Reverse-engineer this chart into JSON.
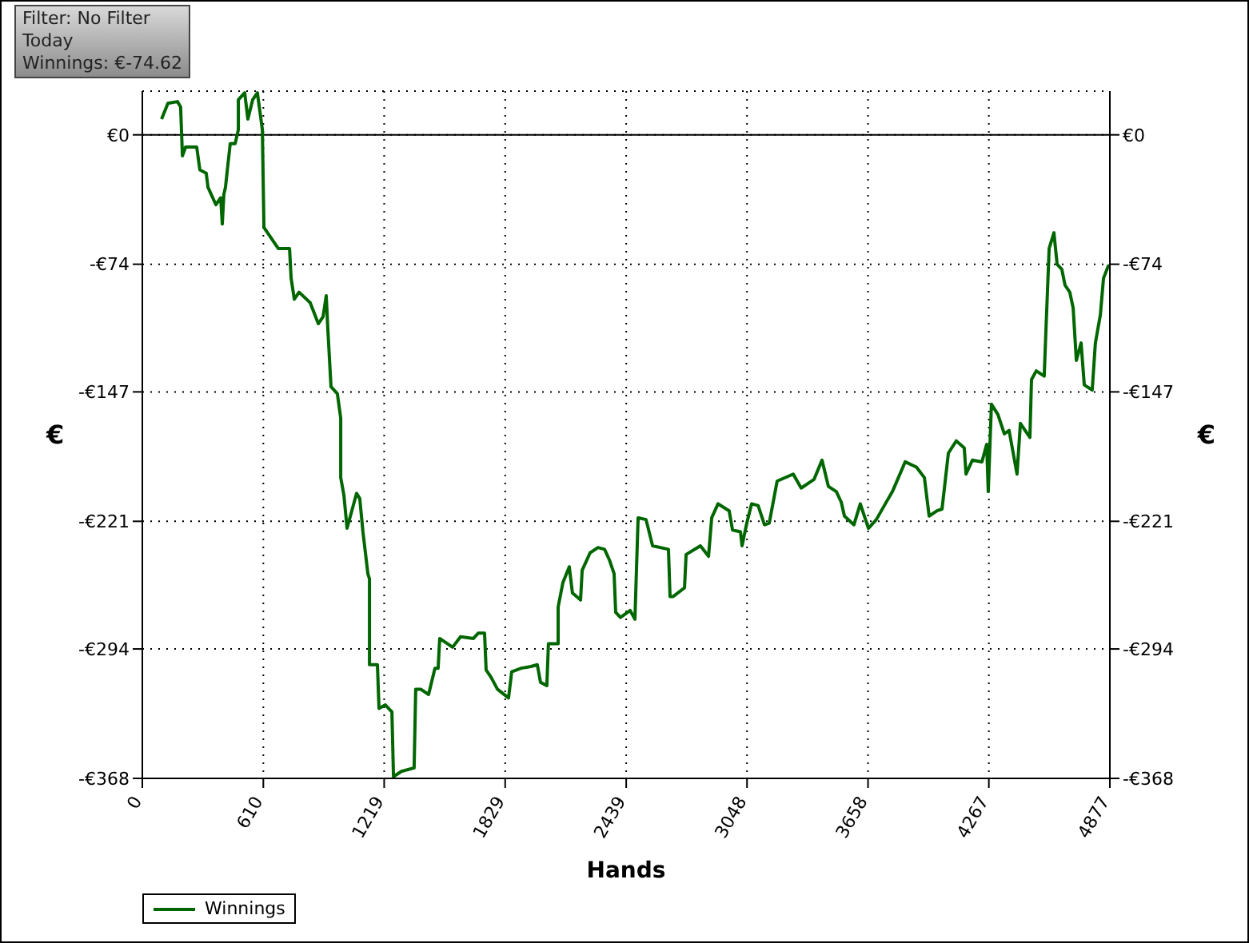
{
  "chart_data": {
    "type": "line",
    "xlabel": "Hands",
    "ylabel": "€",
    "y2label": "€",
    "annotations": [
      "Filter: No Filter",
      "Today",
      "Winnings: €-74.62"
    ],
    "xlim": [
      0,
      4877
    ],
    "xticks": [
      0,
      610,
      1219,
      1829,
      2439,
      3048,
      3658,
      4267,
      4877
    ],
    "ylim": [
      -368,
      25
    ],
    "yticks": [
      {
        "value": 0,
        "label": "€0"
      },
      {
        "value": -74,
        "label": "-€74"
      },
      {
        "value": -147,
        "label": "-€147"
      },
      {
        "value": -221,
        "label": "-€221"
      },
      {
        "value": -294,
        "label": "-€294"
      },
      {
        "value": -368,
        "label": "-€368"
      }
    ],
    "y2lim": [
      -368,
      25
    ],
    "y2ticks": [
      {
        "value": 0,
        "label": "€0"
      },
      {
        "value": -74,
        "label": "-€74"
      },
      {
        "value": -147,
        "label": "-€147"
      },
      {
        "value": -221,
        "label": "-€221"
      },
      {
        "value": -294,
        "label": "-€294"
      },
      {
        "value": -368,
        "label": "-€368"
      }
    ],
    "grid": true,
    "legend": "bottom left",
    "ref_lines": [
      {
        "axis": "y",
        "value": 0,
        "color": "#000000"
      }
    ],
    "x": [
      97,
      129,
      177,
      193,
      202,
      218,
      274,
      290,
      322,
      331,
      371,
      395,
      403,
      411,
      419,
      443,
      468,
      484,
      484,
      516,
      532,
      556,
      580,
      605,
      613,
      637,
      661,
      685,
      742,
      750,
      766,
      790,
      846,
      887,
      911,
      927,
      935,
      951,
      983,
      1000,
      1000,
      1016,
      1032,
      1080,
      1096,
      1112,
      1137,
      1145,
      1145,
      1185,
      1193,
      1225,
      1258,
      1266,
      1306,
      1370,
      1378,
      1403,
      1443,
      1475,
      1491,
      1499,
      1564,
      1604,
      1669,
      1693,
      1725,
      1733,
      1757,
      1790,
      1846,
      1862,
      1910,
      1959,
      1991,
      2007,
      2039,
      2047,
      2096,
      2096,
      2120,
      2152,
      2168,
      2209,
      2217,
      2257,
      2297,
      2330,
      2354,
      2378,
      2386,
      2410,
      2459,
      2483,
      2499,
      2539,
      2572,
      2652,
      2660,
      2676,
      2733,
      2741,
      2813,
      2854,
      2870,
      2902,
      2958,
      2975,
      3015,
      3023,
      3047,
      3071,
      3104,
      3136,
      3160,
      3200,
      3281,
      3321,
      3386,
      3426,
      3458,
      3498,
      3523,
      3539,
      3587,
      3619,
      3660,
      3700,
      3740,
      3781,
      3845,
      3902,
      3942,
      3966,
      4006,
      4031,
      4063,
      4103,
      4143,
      4152,
      4184,
      4232,
      4256,
      4264,
      4280,
      4313,
      4345,
      4369,
      4409,
      4426,
      4474,
      4482,
      4506,
      4546,
      4555,
      4571,
      4595,
      4611,
      4635,
      4651,
      4675,
      4692,
      4708,
      4732,
      4748,
      4788,
      4804,
      4829,
      4845,
      4869,
      4877
    ],
    "series": [
      {
        "name": "Winnings",
        "color": "#006600",
        "values": [
          9,
          18,
          19,
          16,
          -12,
          -7,
          -7,
          -20,
          -22,
          -30,
          -40,
          -36,
          -51,
          -34,
          -30,
          -5,
          -5,
          3,
          20,
          24,
          9,
          20,
          24,
          3,
          -53,
          -57,
          -61,
          -65,
          -65,
          -82,
          -94,
          -90,
          -96,
          -108,
          -104,
          -92,
          -111,
          -144,
          -148,
          -162,
          -196,
          -206,
          -225,
          -205,
          -208,
          -227,
          -251,
          -254,
          -303,
          -303,
          -328,
          -326,
          -330,
          -367,
          -364,
          -362,
          -317,
          -317,
          -320,
          -305,
          -305,
          -288,
          -293,
          -287,
          -288,
          -285,
          -285,
          -306,
          -310,
          -317,
          -322,
          -307,
          -305,
          -304,
          -303,
          -313,
          -315,
          -291,
          -291,
          -270,
          -256,
          -247,
          -262,
          -266,
          -249,
          -239,
          -236,
          -237,
          -243,
          -251,
          -273,
          -276,
          -272,
          -277,
          -219,
          -220,
          -235,
          -237,
          -264,
          -264,
          -259,
          -240,
          -235,
          -241,
          -219,
          -211,
          -215,
          -226,
          -227,
          -235,
          -222,
          -211,
          -212,
          -223,
          -222,
          -198,
          -194,
          -202,
          -197,
          -186,
          -201,
          -204,
          -210,
          -218,
          -223,
          -211,
          -225,
          -220,
          -212,
          -204,
          -187,
          -190,
          -196,
          -218,
          -215,
          -214,
          -182,
          -175,
          -179,
          -194,
          -186,
          -187,
          -177,
          -204,
          -154,
          -160,
          -171,
          -169,
          -194,
          -165,
          -173,
          -140,
          -135,
          -138,
          -111,
          -65,
          -56,
          -74,
          -77,
          -86,
          -90,
          -99,
          -129,
          -119,
          -143,
          -146,
          -119,
          -103,
          -82,
          -75,
          -75
        ]
      }
    ]
  }
}
